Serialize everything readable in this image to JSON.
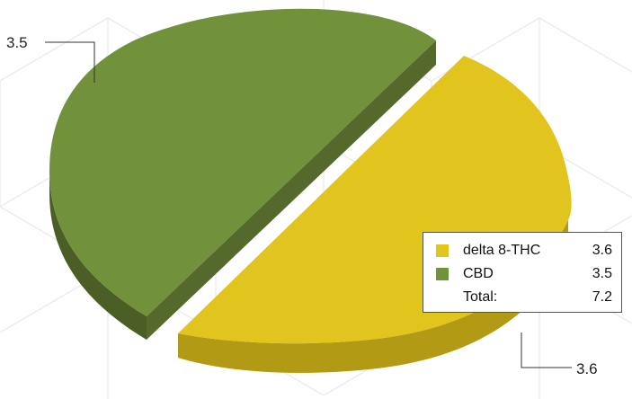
{
  "chart_data": {
    "type": "pie",
    "style": "3d-exploded",
    "slices": [
      {
        "name": "delta 8-THC",
        "value": 3.6,
        "label": "3.6",
        "color": "#e2c41f",
        "side_color": "#b39a14"
      },
      {
        "name": "CBD",
        "value": 3.5,
        "label": "3.5",
        "color": "#72913b",
        "side_color": "#4a5e26"
      }
    ],
    "legend": {
      "position": "right",
      "items": [
        {
          "name": "delta 8-THC",
          "value": "3.6",
          "color": "#e2c41f"
        },
        {
          "name": "CBD",
          "value": "3.5",
          "color": "#72913b"
        }
      ],
      "total_label": "Total:",
      "total_value": "7.2"
    }
  }
}
